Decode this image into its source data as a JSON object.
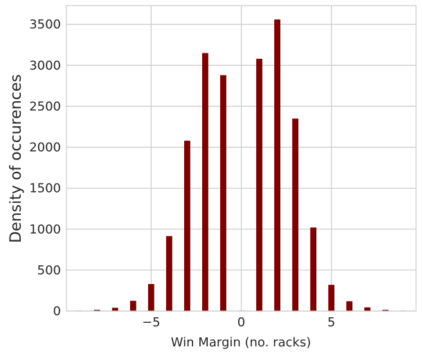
{
  "chart_data": {
    "type": "bar",
    "xlabel": "Win Margin (no. racks)",
    "ylabel": "Density of occurences",
    "xlim": [
      -9.7,
      9.7
    ],
    "ylim": [
      0,
      3730
    ],
    "xticks": [
      -5,
      0,
      5
    ],
    "xtick_labels": [
      "−5",
      "0",
      "5"
    ],
    "yticks": [
      0,
      500,
      1000,
      1500,
      2000,
      2500,
      3000,
      3500
    ],
    "ytick_labels": [
      "0",
      "500",
      "1000",
      "1500",
      "2000",
      "2500",
      "3000",
      "3500"
    ],
    "grid": true,
    "bar_color": "#800000",
    "x": [
      -9,
      -8,
      -7,
      -6,
      -5,
      -4,
      -3,
      -2,
      -1,
      0,
      1,
      2,
      3,
      4,
      5,
      6,
      7,
      8,
      9
    ],
    "values": [
      5,
      15,
      40,
      125,
      330,
      915,
      2080,
      3150,
      2880,
      5,
      3080,
      3560,
      2350,
      1020,
      320,
      120,
      45,
      15,
      5
    ]
  }
}
